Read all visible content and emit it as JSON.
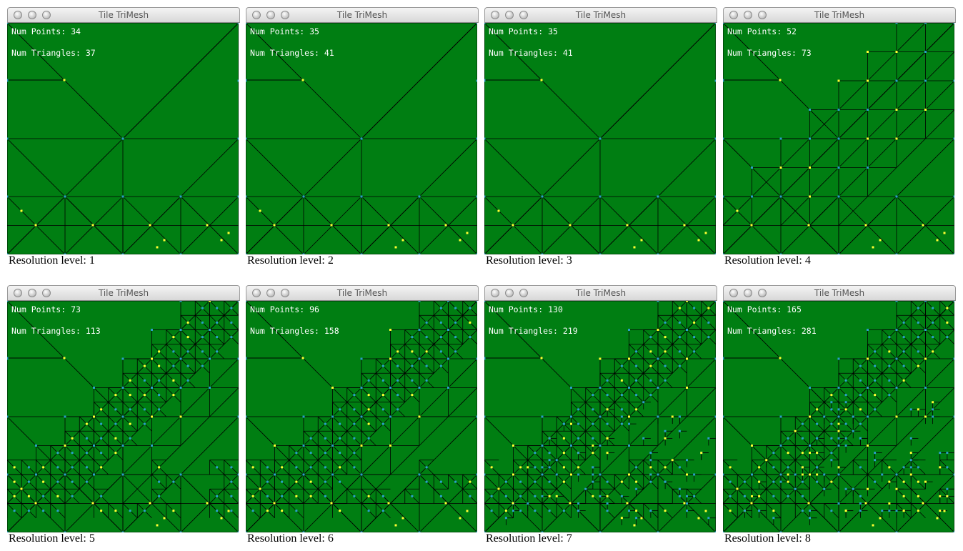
{
  "window_title": "Tile TriMesh",
  "num_points_label": "Num Points:",
  "num_triangles_label": "Num Triangles:",
  "resolution_label": "Resolution level:",
  "colors": {
    "terrain_fill": "#007e12",
    "edge": "#000000",
    "vertex": "#2aa0c8",
    "highlight_vertex": "#ffff33"
  },
  "panels": [
    {
      "level": "1",
      "num_points": "34",
      "num_triangles": "37"
    },
    {
      "level": "2",
      "num_points": "35",
      "num_triangles": "41"
    },
    {
      "level": "3",
      "num_points": "35",
      "num_triangles": "41"
    },
    {
      "level": "4",
      "num_points": "52",
      "num_triangles": "73"
    },
    {
      "level": "5",
      "num_points": "73",
      "num_triangles": "113"
    },
    {
      "level": "6",
      "num_points": "96",
      "num_triangles": "158"
    },
    {
      "level": "7",
      "num_points": "130",
      "num_triangles": "219"
    },
    {
      "level": "8",
      "num_points": "165",
      "num_triangles": "281"
    }
  ]
}
